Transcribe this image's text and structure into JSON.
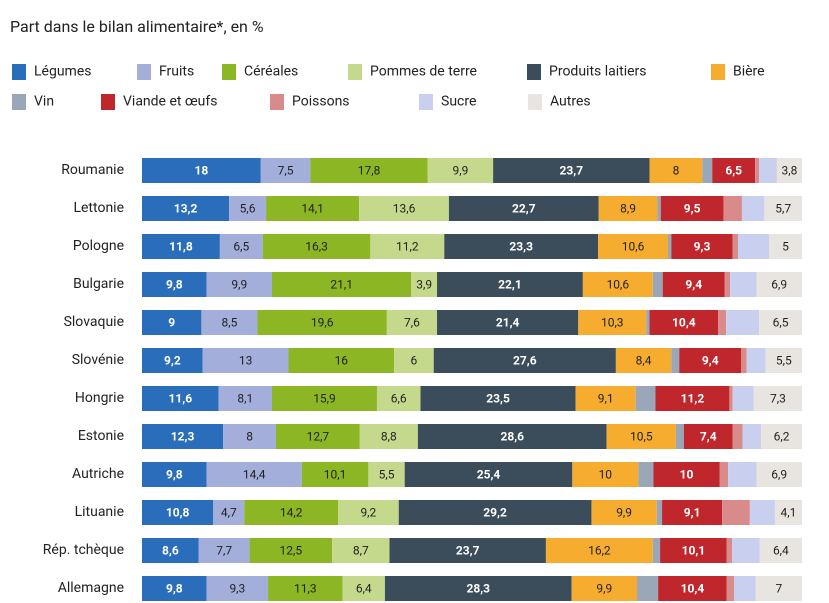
{
  "chart_data": {
    "type": "stacked-barh",
    "title": "Part dans le bilan alimentaire*, en %",
    "categories": [
      "Roumanie",
      "Lettonie",
      "Pologne",
      "Bulgarie",
      "Slovaquie",
      "Slovénie",
      "Hongrie",
      "Estonie",
      "Autriche",
      "Lituanie",
      "Rép. tchèque",
      "Allemagne"
    ],
    "series": [
      {
        "name": "Légumes",
        "color": "#2a6ebb",
        "values": [
          18,
          13.2,
          11.8,
          9.8,
          9,
          9.2,
          11.6,
          12.3,
          9.8,
          10.8,
          8.6,
          9.8
        ],
        "value_labels": [
          "18",
          "13,2",
          "11,8",
          "9,8",
          "9",
          "9,2",
          "11,6",
          "12,3",
          "9,8",
          "10,8",
          "8,6",
          "9,8"
        ]
      },
      {
        "name": "Fruits",
        "color": "#a3aedb",
        "values": [
          7.5,
          5.6,
          6.5,
          9.9,
          8.5,
          13,
          8.1,
          8,
          14.4,
          4.7,
          7.7,
          9.3
        ],
        "value_labels": [
          "7,5",
          "5,6",
          "6,5",
          "9,9",
          "8,5",
          "13",
          "8,1",
          "8",
          "14,4",
          "4,7",
          "7,7",
          "9,3"
        ]
      },
      {
        "name": "Céréales",
        "color": "#8cb623",
        "values": [
          17.8,
          14.1,
          16.3,
          21.1,
          19.6,
          16,
          15.9,
          12.7,
          10.1,
          14.2,
          12.5,
          11.3
        ],
        "value_labels": [
          "17,8",
          "14,1",
          "16,3",
          "21,1",
          "19,6",
          "16",
          "15,9",
          "12,7",
          "10,1",
          "14,2",
          "12,5",
          "11,3"
        ]
      },
      {
        "name": "Pommes de terre",
        "color": "#c5d98c",
        "values": [
          9.9,
          13.6,
          11.2,
          3.9,
          7.6,
          6,
          6.6,
          8.8,
          5.5,
          9.2,
          8.7,
          6.4
        ],
        "value_labels": [
          "9,9",
          "13,6",
          "11,2",
          "3,9",
          "7,6",
          "6",
          "6,6",
          "8,8",
          "5,5",
          "9,2",
          "8,7",
          "6,4"
        ]
      },
      {
        "name": "Produits laitiers",
        "color": "#3b4d5a",
        "values": [
          23.7,
          22.7,
          23.3,
          22.1,
          21.4,
          27.6,
          23.5,
          28.6,
          25.4,
          29.2,
          23.7,
          28.3
        ],
        "value_labels": [
          "23,7",
          "22,7",
          "23,3",
          "22,1",
          "21,4",
          "27,6",
          "23,5",
          "28,6",
          "25,4",
          "29,2",
          "23,7",
          "28,3"
        ]
      },
      {
        "name": "Bière",
        "color": "#f5ac2f",
        "values": [
          8,
          8.9,
          10.6,
          10.6,
          10.3,
          8.4,
          9.1,
          10.5,
          10,
          9.9,
          16.2,
          9.9
        ],
        "value_labels": [
          "8",
          "8,9",
          "10,6",
          "10,6",
          "10,3",
          "8,4",
          "9,1",
          "10,5",
          "10",
          "9,9",
          "16,2",
          "9,9"
        ]
      },
      {
        "name": "Vin",
        "color": "#9aa7b8",
        "values": [
          1.5,
          0.5,
          0.5,
          1.5,
          0.5,
          1.2,
          3,
          1.2,
          2.3,
          0.8,
          1.1,
          3.2
        ]
      },
      {
        "name": "Viande et œufs",
        "color": "#c0272d",
        "values": [
          6.5,
          9.5,
          9.3,
          9.4,
          10.4,
          9.4,
          11.2,
          7.4,
          10,
          9.1,
          10.1,
          10.4
        ],
        "value_labels": [
          "6,5",
          "9,5",
          "9,3",
          "9,4",
          "10,4",
          "9,4",
          "11,2",
          "7,4",
          "10",
          "9,1",
          "10,1",
          "10,4"
        ]
      },
      {
        "name": "Poissons",
        "color": "#d98a8a",
        "values": [
          0.6,
          2.8,
          0.8,
          0.8,
          1.2,
          0.8,
          0.5,
          1.5,
          1.3,
          4.2,
          0.8,
          1.1
        ]
      },
      {
        "name": "Sucre",
        "color": "#c9d0ef",
        "values": [
          2.7,
          3.4,
          4.7,
          4,
          5,
          2.9,
          3.2,
          2.8,
          4.3,
          3.8,
          4.2,
          3.3
        ]
      },
      {
        "name": "Autres",
        "color": "#e8e4e0",
        "values": [
          3.8,
          5.7,
          5,
          6.9,
          6.5,
          5.5,
          7.3,
          6.2,
          6.9,
          4.1,
          6.4,
          7
        ],
        "value_labels": [
          "3,8",
          "5,7",
          "5",
          "6,9",
          "6,5",
          "5,5",
          "7,3",
          "6,2",
          "6,9",
          "4,1",
          "6,4",
          "7"
        ]
      }
    ]
  }
}
